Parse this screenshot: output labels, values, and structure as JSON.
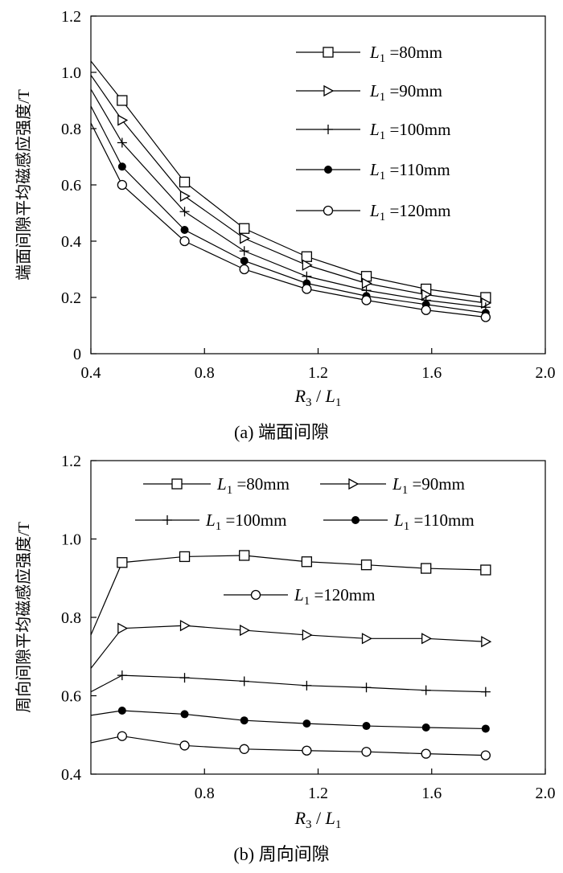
{
  "chart_data": [
    {
      "type": "line",
      "id": "a",
      "caption": "(a)  端面间隙",
      "ylabel": "端面间隙平均磁感应强度/T",
      "xlabel_main": "R",
      "xlabel_sub": "3",
      "xlabel_sep": " / ",
      "xlabel_main2": "L",
      "xlabel_sub2": "1",
      "xlim": [
        0.4,
        2.0
      ],
      "ylim": [
        0,
        1.2
      ],
      "xticks": [
        0.4,
        0.8,
        1.2,
        1.6,
        2.0
      ],
      "xtick_labels": [
        "0.4",
        "0.8",
        "1.2",
        "1.6",
        "2.0"
      ],
      "yticks": [
        0,
        0.2,
        0.4,
        0.6,
        0.8,
        1.0,
        1.2
      ],
      "ytick_labels": [
        "0",
        "0.2",
        "0.4",
        "0.6",
        "0.8",
        "1.0",
        "1.2"
      ],
      "x": [
        0.51,
        0.73,
        0.94,
        1.16,
        1.37,
        1.58,
        1.79
      ],
      "series": [
        {
          "name": "L1=80mm",
          "label_L": "L",
          "label_sub": "1",
          "label_rest": " =80mm",
          "marker": "square",
          "curve_start": [
            0.4,
            1.04
          ],
          "values": [
            0.9,
            0.61,
            0.445,
            0.345,
            0.275,
            0.23,
            0.2
          ]
        },
        {
          "name": "L1=90mm",
          "label_L": "L",
          "label_sub": "1",
          "label_rest": " =90mm",
          "marker": "triangle-right",
          "curve_start": [
            0.4,
            0.99
          ],
          "values": [
            0.83,
            0.56,
            0.41,
            0.315,
            0.25,
            0.21,
            0.18
          ]
        },
        {
          "name": "L1=100mm",
          "label_L": "L",
          "label_sub": "1",
          "label_rest": " =100mm",
          "marker": "plus",
          "curve_start": [
            0.4,
            0.94
          ],
          "values": [
            0.75,
            0.505,
            0.365,
            0.275,
            0.225,
            0.19,
            0.165
          ]
        },
        {
          "name": "L1=110mm",
          "label_L": "L",
          "label_sub": "1",
          "label_rest": " =110mm",
          "marker": "dot",
          "curve_start": [
            0.4,
            0.88
          ],
          "values": [
            0.665,
            0.44,
            0.33,
            0.25,
            0.205,
            0.175,
            0.145
          ]
        },
        {
          "name": "L1=120mm",
          "label_L": "L",
          "label_sub": "1",
          "label_rest": " =120mm",
          "marker": "circle",
          "curve_start": [
            0.4,
            0.82
          ],
          "values": [
            0.6,
            0.4,
            0.3,
            0.23,
            0.19,
            0.155,
            0.13
          ]
        }
      ],
      "legend": "top-right"
    },
    {
      "type": "line",
      "id": "b",
      "caption": "(b)  周向间隙",
      "ylabel": "周向间隙平均磁感应强度/T",
      "xlabel_main": "R",
      "xlabel_sub": "3",
      "xlabel_sep": " / ",
      "xlabel_main2": "L",
      "xlabel_sub2": "1",
      "xlim": [
        0.4,
        2.0
      ],
      "ylim": [
        0.4,
        1.2
      ],
      "xticks": [
        0.8,
        1.2,
        1.6,
        2.0
      ],
      "xtick_labels": [
        "0.8",
        "1.2",
        "1.6",
        "2.0"
      ],
      "yticks": [
        0.4,
        0.6,
        0.8,
        1.0,
        1.2
      ],
      "ytick_labels": [
        "0.4",
        "0.6",
        "0.8",
        "1.0",
        "1.2"
      ],
      "x": [
        0.51,
        0.73,
        0.94,
        1.16,
        1.37,
        1.58,
        1.79
      ],
      "series": [
        {
          "name": "L1=80mm",
          "label_L": "L",
          "label_sub": "1",
          "label_rest": " =80mm",
          "marker": "square",
          "curve_start": [
            0.4,
            0.755
          ],
          "values": [
            0.94,
            0.955,
            0.958,
            0.942,
            0.934,
            0.925,
            0.921
          ]
        },
        {
          "name": "L1=90mm",
          "label_L": "L",
          "label_sub": "1",
          "label_rest": " =90mm",
          "marker": "triangle-right",
          "curve_start": [
            0.4,
            0.67
          ],
          "values": [
            0.772,
            0.779,
            0.767,
            0.755,
            0.746,
            0.746,
            0.738
          ]
        },
        {
          "name": "L1=100mm",
          "label_L": "L",
          "label_sub": "1",
          "label_rest": " =100mm",
          "marker": "plus",
          "curve_start": [
            0.4,
            0.61
          ],
          "values": [
            0.652,
            0.646,
            0.637,
            0.626,
            0.621,
            0.614,
            0.61
          ]
        },
        {
          "name": "L1=110mm",
          "label_L": "L",
          "label_sub": "1",
          "label_rest": " =110mm",
          "marker": "dot",
          "curve_start": [
            0.4,
            0.55
          ],
          "values": [
            0.562,
            0.553,
            0.537,
            0.529,
            0.523,
            0.519,
            0.516
          ]
        },
        {
          "name": "L1=120mm",
          "label_L": "L",
          "label_sub": "1",
          "label_rest": " =120mm",
          "marker": "circle",
          "curve_start": [
            0.4,
            0.48
          ],
          "values": [
            0.497,
            0.473,
            0.464,
            0.46,
            0.457,
            0.452,
            0.448
          ]
        }
      ],
      "legend": "top"
    }
  ]
}
